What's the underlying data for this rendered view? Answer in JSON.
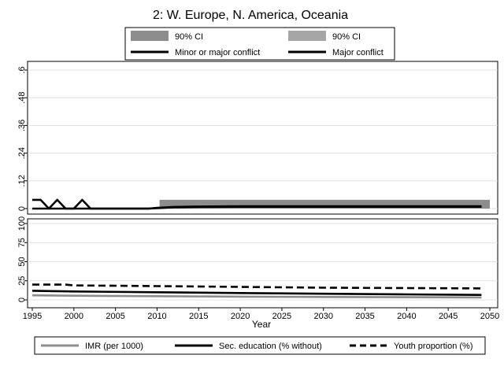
{
  "chart_data": {
    "type": "line",
    "title": "2: W. Europe, N. America, Oceania",
    "xlabel": "Year",
    "x_ticks": [
      1995,
      2000,
      2005,
      2010,
      2015,
      2020,
      2025,
      2030,
      2035,
      2040,
      2045,
      2050
    ],
    "legend_top": [
      {
        "label": "90% CI",
        "style": "band",
        "color": "#8c8c8c"
      },
      {
        "label": "90% CI",
        "style": "band",
        "color": "#a6a6a6"
      },
      {
        "label": "Minor or major conflict",
        "style": "solid",
        "color": "#000000"
      },
      {
        "label": "Major conflict",
        "style": "solid",
        "color": "#000000"
      }
    ],
    "legend_bottom": [
      {
        "label": "IMR (per 1000)",
        "style": "solid-gray",
        "color": "#8c8c8c"
      },
      {
        "label": "Sec. education (% without)",
        "style": "solid",
        "color": "#000000"
      },
      {
        "label": "Youth proportion (%)",
        "style": "dashed",
        "color": "#000000"
      }
    ],
    "panels": [
      {
        "name": "conflict",
        "ylim": [
          0,
          0.6
        ],
        "y_ticks": [
          0,
          0.12,
          0.24,
          0.36,
          0.48,
          0.6
        ],
        "y_tick_labels": [
          "0",
          ".12",
          ".24",
          ".36",
          ".48",
          ".6"
        ],
        "bands": [
          {
            "name": "90% CI (minor or major)",
            "x_start": 2010.3,
            "x_end": 2050,
            "lower": 0.0,
            "upper": 0.038,
            "color": "#8c8c8c"
          }
        ],
        "series": [
          {
            "name": "Minor or major conflict",
            "style": "solid",
            "x": [
              1995,
              1996,
              1997,
              1998,
              1999,
              2000,
              2001,
              2002,
              2003,
              2009,
              2010,
              2012,
              2015,
              2020,
              2030,
              2040,
              2049
            ],
            "y": [
              0.038,
              0.038,
              0,
              0.038,
              0,
              0,
              0.038,
              0,
              0,
              0,
              0.003,
              0.007,
              0.009,
              0.01,
              0.01,
              0.01,
              0.01
            ]
          },
          {
            "name": "Major conflict",
            "style": "solid",
            "x": [
              1995,
              2009,
              2010,
              2012,
              2015,
              2020,
              2030,
              2040,
              2049
            ],
            "y": [
              0,
              0,
              0.002,
              0.005,
              0.007,
              0.008,
              0.008,
              0.008,
              0.008
            ]
          }
        ]
      },
      {
        "name": "covariates",
        "ylim": [
          0,
          100
        ],
        "y_ticks": [
          0,
          25,
          50,
          75,
          100
        ],
        "y_tick_labels": [
          "0",
          "25",
          "50",
          "75",
          "100"
        ],
        "series": [
          {
            "name": "IMR (per 1000)",
            "style": "solid-gray",
            "x": [
              1995,
              2000,
              2010,
              2020,
              2030,
              2040,
              2049
            ],
            "y": [
              6,
              5.5,
              4.8,
              4.2,
              3.8,
              3.5,
              3.2
            ]
          },
          {
            "name": "Sec. education (% without)",
            "style": "solid",
            "x": [
              1995,
              2000,
              2010,
              2020,
              2030,
              2040,
              2049
            ],
            "y": [
              12,
              11,
              10,
              9,
              8,
              7.2,
              6.5
            ]
          },
          {
            "name": "Youth proportion (%)",
            "style": "dashed",
            "x": [
              1995,
              1999,
              2000,
              2010,
              2020,
              2030,
              2040,
              2049
            ],
            "y": [
              20,
              20,
              19,
              18,
              17,
              16,
              15.5,
              15
            ]
          }
        ]
      }
    ]
  }
}
